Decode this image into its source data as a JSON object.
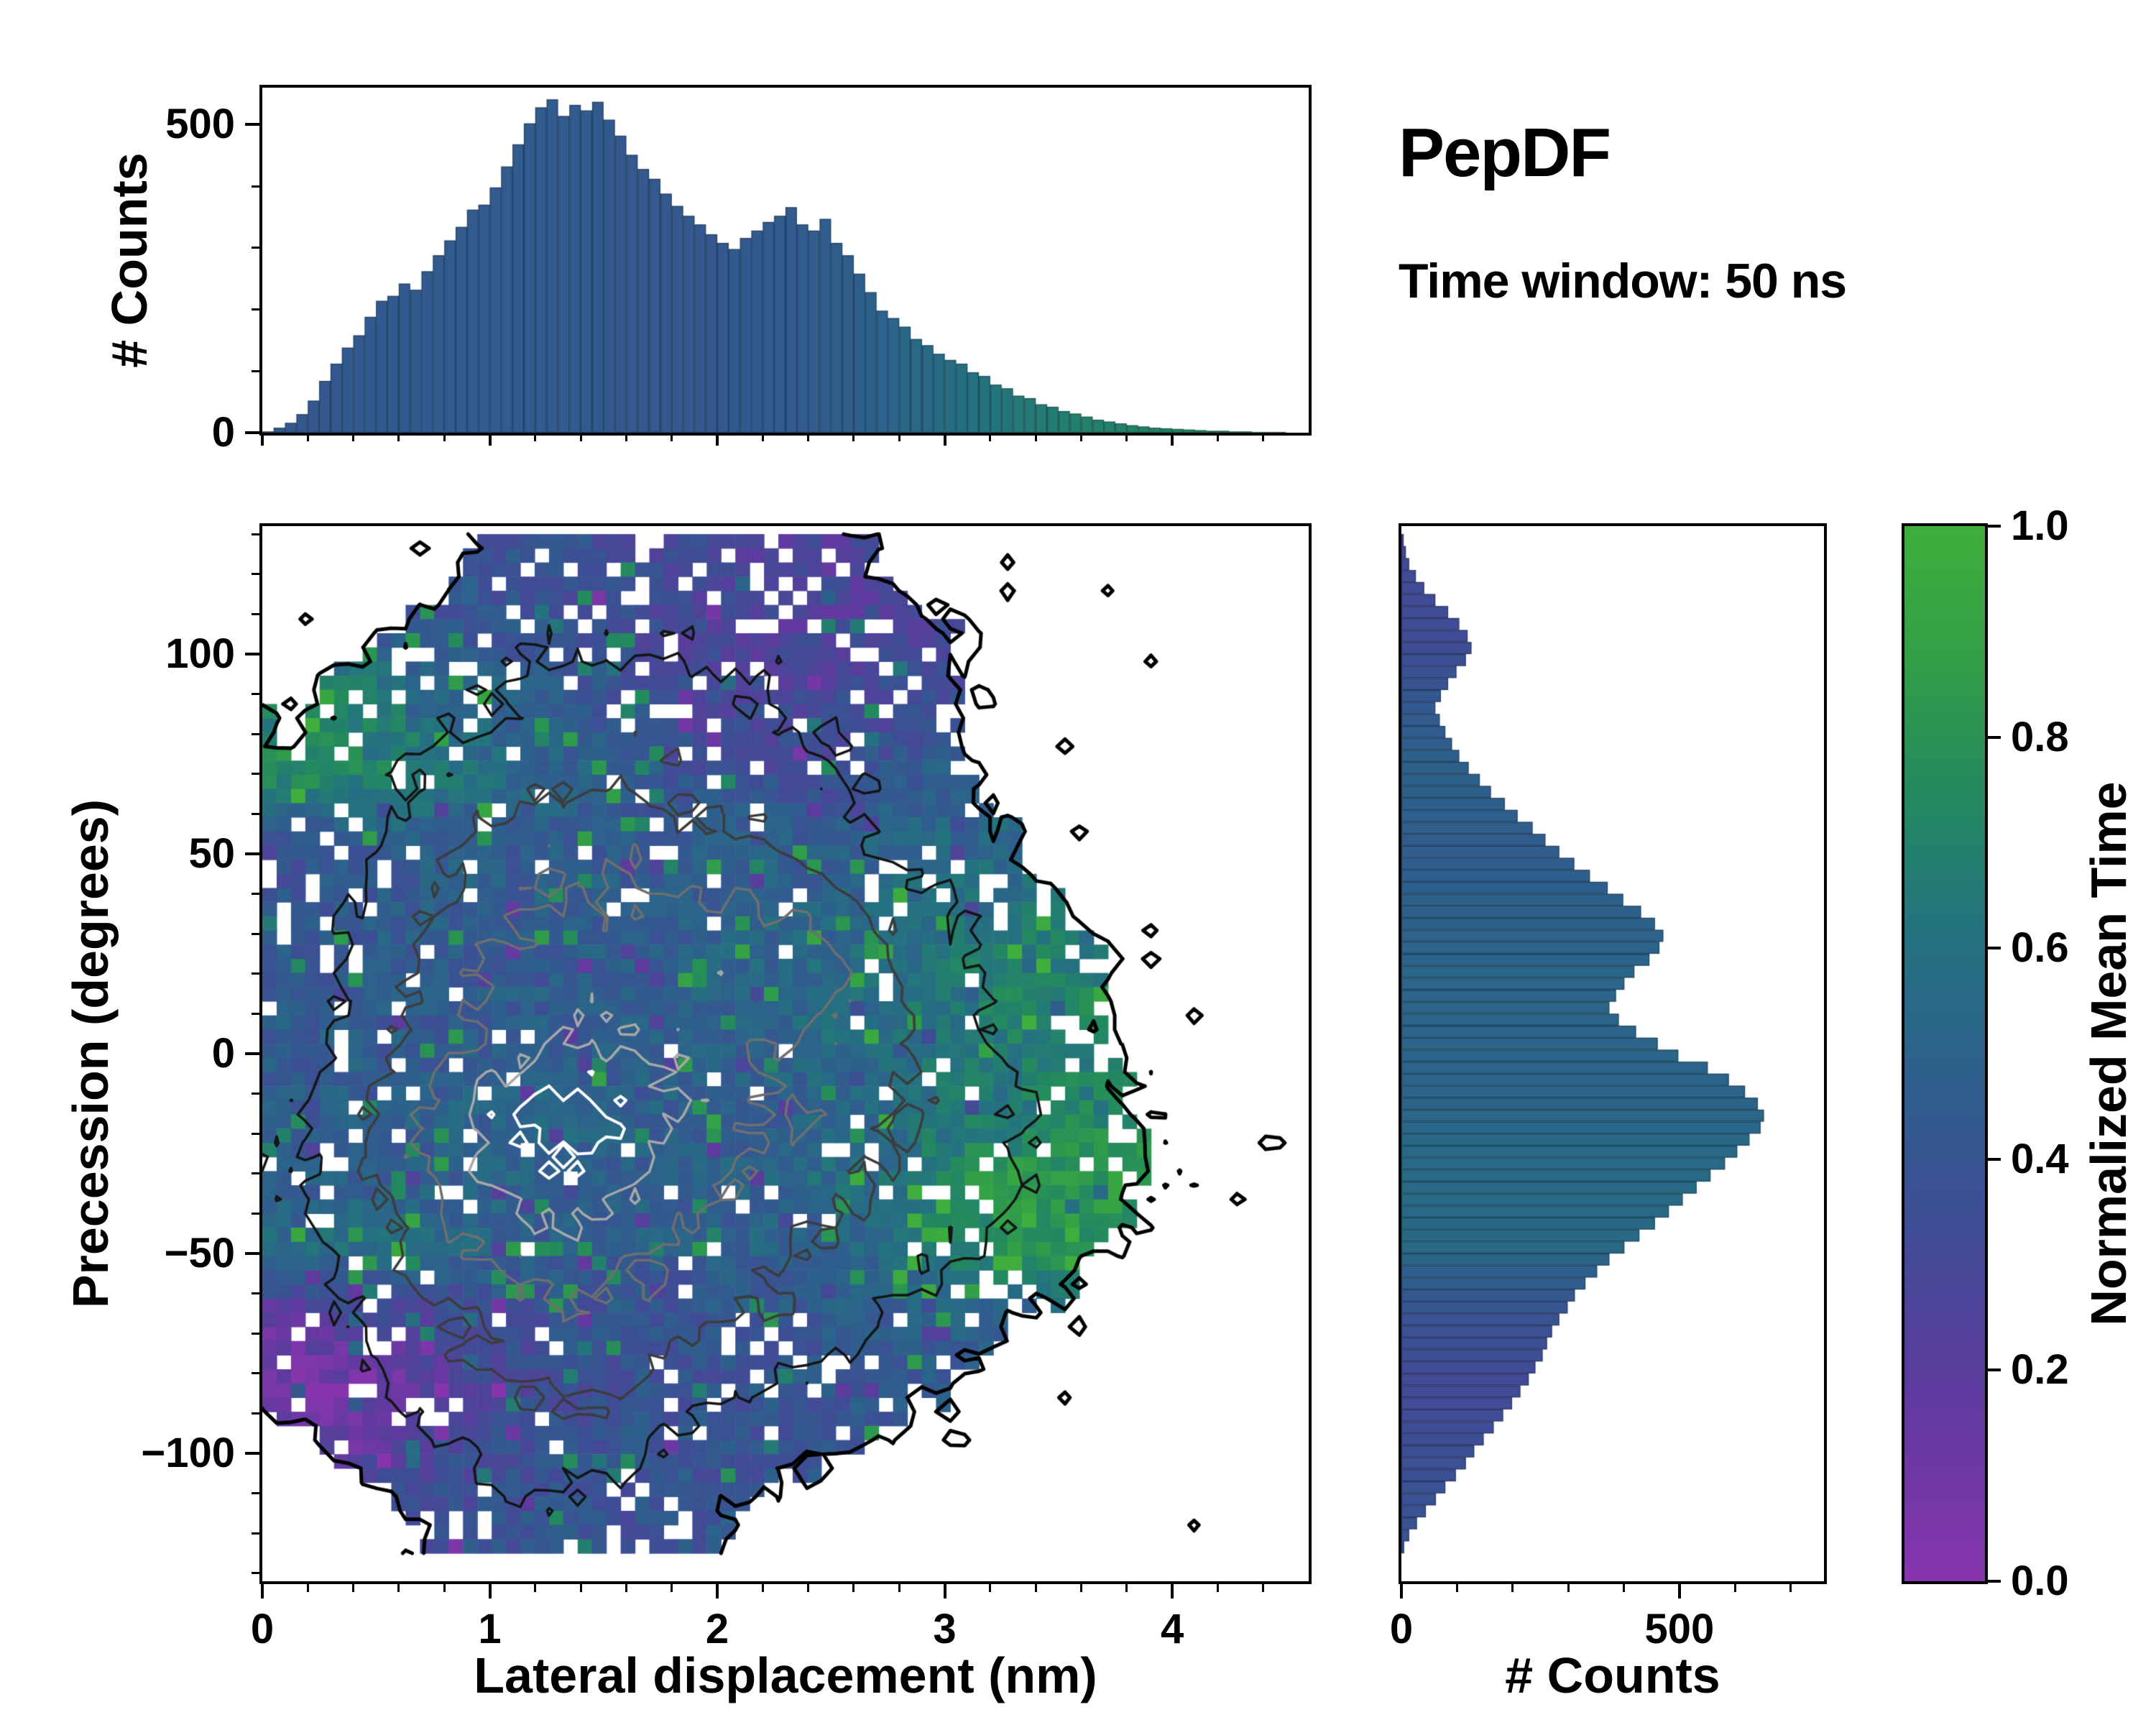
{
  "title": "PepDF",
  "subtitle": "Time window: 50 ns",
  "colormap": {
    "label": "Normalized Mean Time",
    "ticks": [
      {
        "v": 0.0,
        "label": "0.0"
      },
      {
        "v": 0.2,
        "label": "0.2"
      },
      {
        "v": 0.4,
        "label": "0.4"
      },
      {
        "v": 0.6,
        "label": "0.6"
      },
      {
        "v": 0.8,
        "label": "0.8"
      },
      {
        "v": 1.0,
        "label": "1.0"
      }
    ],
    "stops": [
      [
        0.0,
        "#8735ad"
      ],
      [
        0.18,
        "#5e3a9e"
      ],
      [
        0.34,
        "#3e4d95"
      ],
      [
        0.5,
        "#2c628b"
      ],
      [
        0.62,
        "#24737f"
      ],
      [
        0.75,
        "#238a5e"
      ],
      [
        0.88,
        "#32a046"
      ],
      [
        1.0,
        "#3fae3c"
      ]
    ]
  },
  "chart_data": [
    {
      "id": "lateral_displacement_histogram",
      "type": "bar",
      "ylabel": "# Counts",
      "x_start": 0,
      "bin_width": 0.05,
      "xlim": [
        0,
        4.6
      ],
      "ylim": [
        0,
        560
      ],
      "y_ticks": [
        {
          "v": 0,
          "label": "0"
        },
        {
          "v": 500,
          "label": "500"
        }
      ],
      "y_minor_step": 100,
      "counts": [
        2,
        8,
        16,
        30,
        52,
        84,
        112,
        138,
        158,
        188,
        214,
        222,
        242,
        232,
        262,
        288,
        312,
        334,
        362,
        370,
        398,
        432,
        468,
        502,
        528,
        541,
        514,
        532,
        523,
        537,
        508,
        482,
        451,
        428,
        412,
        388,
        368,
        352,
        338,
        322,
        308,
        298,
        316,
        328,
        342,
        352,
        366,
        338,
        328,
        347,
        308,
        288,
        258,
        228,
        198,
        186,
        172,
        152,
        142,
        128,
        118,
        112,
        98,
        92,
        78,
        72,
        60,
        56,
        46,
        42,
        35,
        31,
        26,
        21,
        18,
        15,
        12,
        10,
        8,
        7,
        6,
        5,
        4,
        3,
        3,
        2,
        2,
        1,
        1,
        1,
        0,
        0
      ]
    },
    {
      "id": "precession_vs_displacement_heatmap",
      "type": "heatmap",
      "xlabel": "Lateral displacement (nm)",
      "ylabel": "Precession (degrees)",
      "value_label": "Normalized Mean Time",
      "xlim": [
        0,
        4.6
      ],
      "ylim": [
        -132,
        132
      ],
      "x_ticks": [
        {
          "v": 0,
          "label": "0"
        },
        {
          "v": 1,
          "label": "1"
        },
        {
          "v": 2,
          "label": "2"
        },
        {
          "v": 3,
          "label": "3"
        },
        {
          "v": 4,
          "label": "4"
        }
      ],
      "x_minor_step": 0.2,
      "y_ticks": [
        {
          "v": -100,
          "label": "−100"
        },
        {
          "v": -50,
          "label": "−50"
        },
        {
          "v": 0,
          "label": "0"
        },
        {
          "v": 50,
          "label": "50"
        },
        {
          "v": 100,
          "label": "100"
        }
      ],
      "y_minor_step": 10,
      "grid_extent": {
        "x": [
          0,
          4.6
        ],
        "y": [
          -125,
          130
        ]
      },
      "density": [
        [
          0,
          0,
          0.08,
          0.2,
          0.24,
          0.25,
          0.24,
          0.24,
          0.2,
          0.14,
          0.08,
          0.04,
          0,
          0,
          0,
          0
        ],
        [
          0.04,
          0.1,
          0.2,
          0.28,
          0.3,
          0.3,
          0.3,
          0.3,
          0.28,
          0.24,
          0.18,
          0.1,
          0.05,
          0.03,
          0,
          0
        ],
        [
          0.14,
          0.2,
          0.28,
          0.34,
          0.38,
          0.4,
          0.38,
          0.35,
          0.3,
          0.25,
          0.16,
          0.1,
          0.04,
          0,
          0,
          0
        ],
        [
          0.2,
          0.28,
          0.35,
          0.4,
          0.44,
          0.45,
          0.44,
          0.4,
          0.35,
          0.3,
          0.2,
          0.1,
          0.04,
          0,
          0,
          0
        ],
        [
          0.2,
          0.3,
          0.4,
          0.48,
          0.54,
          0.55,
          0.5,
          0.46,
          0.4,
          0.3,
          0.24,
          0.14,
          0.05,
          0,
          0,
          0
        ],
        [
          0.22,
          0.34,
          0.46,
          0.54,
          0.6,
          0.6,
          0.6,
          0.6,
          0.54,
          0.44,
          0.34,
          0.24,
          0.14,
          0.05,
          0,
          0
        ],
        [
          0.24,
          0.36,
          0.5,
          0.6,
          0.64,
          0.65,
          0.65,
          0.68,
          0.64,
          0.5,
          0.4,
          0.3,
          0.2,
          0.1,
          0.04,
          0
        ],
        [
          0.26,
          0.4,
          0.5,
          0.6,
          0.7,
          0.7,
          0.66,
          0.6,
          0.56,
          0.5,
          0.4,
          0.3,
          0.2,
          0.1,
          0.04,
          0
        ],
        [
          0.3,
          0.45,
          0.6,
          0.76,
          0.85,
          0.8,
          0.7,
          0.6,
          0.55,
          0.5,
          0.42,
          0.35,
          0.25,
          0.14,
          0.05,
          0
        ],
        [
          0.3,
          0.44,
          0.58,
          0.7,
          0.8,
          0.75,
          0.65,
          0.55,
          0.5,
          0.46,
          0.4,
          0.35,
          0.26,
          0.16,
          0.1,
          0.04
        ],
        [
          0.26,
          0.4,
          0.5,
          0.6,
          0.66,
          0.62,
          0.56,
          0.5,
          0.46,
          0.4,
          0.35,
          0.3,
          0.2,
          0.1,
          0.04,
          0
        ],
        [
          0.25,
          0.35,
          0.44,
          0.5,
          0.56,
          0.55,
          0.5,
          0.46,
          0.4,
          0.34,
          0.25,
          0.15,
          0.08,
          0.03,
          0,
          0
        ],
        [
          0.2,
          0.3,
          0.4,
          0.46,
          0.5,
          0.46,
          0.4,
          0.35,
          0.3,
          0.24,
          0.14,
          0.06,
          0,
          0,
          0,
          0
        ],
        [
          0.1,
          0.2,
          0.3,
          0.36,
          0.4,
          0.36,
          0.3,
          0.24,
          0.18,
          0.1,
          0.04,
          0,
          0,
          0,
          0,
          0
        ],
        [
          0,
          0.05,
          0.16,
          0.26,
          0.3,
          0.26,
          0.2,
          0.1,
          0.04,
          0,
          0,
          0,
          0,
          0,
          0,
          0
        ]
      ],
      "value": [
        [
          0.45,
          0.42,
          0.42,
          0.4,
          0.38,
          0.34,
          0.3,
          0.27,
          0.25,
          0.26,
          0.3,
          0.32,
          0.36,
          0.4,
          0.4,
          0.4
        ],
        [
          0.5,
          0.46,
          0.42,
          0.4,
          0.37,
          0.32,
          0.28,
          0.25,
          0.26,
          0.28,
          0.32,
          0.36,
          0.4,
          0.44,
          0.45,
          0.45
        ],
        [
          0.75,
          0.7,
          0.6,
          0.5,
          0.45,
          0.4,
          0.34,
          0.3,
          0.3,
          0.32,
          0.36,
          0.4,
          0.42,
          0.45,
          0.45,
          0.45
        ],
        [
          0.8,
          0.74,
          0.64,
          0.55,
          0.5,
          0.45,
          0.4,
          0.36,
          0.36,
          0.4,
          0.45,
          0.5,
          0.5,
          0.5,
          0.5,
          0.5
        ],
        [
          0.35,
          0.45,
          0.5,
          0.46,
          0.45,
          0.45,
          0.44,
          0.45,
          0.46,
          0.5,
          0.54,
          0.55,
          0.55,
          0.55,
          0.55,
          0.55
        ],
        [
          0.4,
          0.44,
          0.45,
          0.45,
          0.48,
          0.46,
          0.45,
          0.5,
          0.5,
          0.55,
          0.58,
          0.6,
          0.6,
          0.6,
          0.6,
          0.6
        ],
        [
          0.44,
          0.45,
          0.45,
          0.45,
          0.46,
          0.45,
          0.5,
          0.52,
          0.55,
          0.6,
          0.65,
          0.7,
          0.7,
          0.66,
          0.7,
          0.7
        ],
        [
          0.45,
          0.45,
          0.44,
          0.45,
          0.46,
          0.46,
          0.5,
          0.5,
          0.55,
          0.6,
          0.64,
          0.66,
          0.7,
          0.7,
          0.7,
          0.7
        ],
        [
          0.45,
          0.46,
          0.48,
          0.5,
          0.52,
          0.48,
          0.46,
          0.46,
          0.5,
          0.55,
          0.6,
          0.66,
          0.7,
          0.7,
          0.7,
          0.7
        ],
        [
          0.45,
          0.46,
          0.48,
          0.5,
          0.5,
          0.48,
          0.46,
          0.5,
          0.55,
          0.6,
          0.76,
          0.85,
          0.85,
          0.84,
          0.8,
          0.8
        ],
        [
          0.55,
          0.6,
          0.55,
          0.5,
          0.46,
          0.45,
          0.46,
          0.5,
          0.5,
          0.56,
          0.7,
          0.8,
          0.8,
          0.76,
          0.7,
          0.7
        ],
        [
          0.2,
          0.25,
          0.3,
          0.35,
          0.4,
          0.4,
          0.4,
          0.42,
          0.44,
          0.46,
          0.5,
          0.5,
          0.5,
          0.5,
          0.5,
          0.5
        ],
        [
          0.07,
          0.1,
          0.16,
          0.3,
          0.35,
          0.38,
          0.4,
          0.4,
          0.4,
          0.44,
          0.45,
          0.45,
          0.45,
          0.45,
          0.45,
          0.45
        ],
        [
          0.14,
          0.18,
          0.3,
          0.35,
          0.38,
          0.4,
          0.4,
          0.4,
          0.4,
          0.42,
          0.45,
          0.45,
          0.45,
          0.45,
          0.45,
          0.45
        ],
        [
          0.3,
          0.3,
          0.35,
          0.38,
          0.4,
          0.4,
          0.4,
          0.4,
          0.42,
          0.45,
          0.45,
          0.45,
          0.45,
          0.45,
          0.45,
          0.45
        ]
      ],
      "contour_levels": [
        {
          "level": 0.15,
          "color": "#000000",
          "width": 5
        },
        {
          "level": 0.33,
          "color": "#141414",
          "width": 3.5
        },
        {
          "level": 0.46,
          "color": "#3c3c3c",
          "width": 3.5
        },
        {
          "level": 0.58,
          "color": "#6f6f6f",
          "width": 3.5
        },
        {
          "level": 0.7,
          "color": "#a8a8a8",
          "width": 3.5
        },
        {
          "level": 0.79,
          "color": "#ffffff",
          "width": 4
        }
      ]
    },
    {
      "id": "precession_histogram",
      "type": "bar",
      "orientation": "horizontal",
      "xlabel": "# Counts",
      "y_start": -125,
      "bin_width": 3,
      "xlim": [
        0,
        760
      ],
      "ylim": [
        -132,
        132
      ],
      "x_ticks": [
        {
          "v": 0,
          "label": "0"
        },
        {
          "v": 500,
          "label": "500"
        }
      ],
      "x_minor_step": 100,
      "counts": [
        5,
        14,
        28,
        44,
        62,
        79,
        98,
        116,
        131,
        148,
        166,
        183,
        199,
        214,
        229,
        241,
        254,
        262,
        271,
        284,
        299,
        312,
        331,
        352,
        374,
        401,
        428,
        456,
        481,
        506,
        531,
        556,
        582,
        604,
        626,
        646,
        652,
        641,
        618,
        589,
        551,
        498,
        461,
        422,
        391,
        374,
        386,
        401,
        419,
        446,
        464,
        471,
        456,
        431,
        399,
        371,
        339,
        311,
        284,
        259,
        236,
        209,
        186,
        161,
        141,
        121,
        104,
        91,
        79,
        69,
        61,
        71,
        84,
        99,
        116,
        126,
        119,
        104,
        84,
        61,
        41,
        26,
        14,
        8,
        4
      ]
    }
  ]
}
